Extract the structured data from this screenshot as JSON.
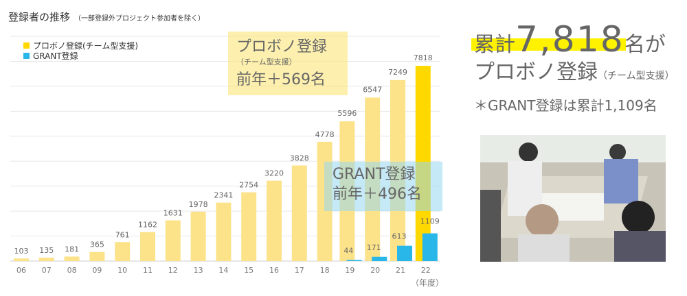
{
  "title": "登録者の推移",
  "subtitle": "（一部登録外プロジェクト参加者を除く）",
  "callout_probono": {
    "line1": "プロボノ登録",
    "line2": "（チーム型支援）",
    "line3": "前年＋569名"
  },
  "callout_grant": {
    "line1": "GRANT登録",
    "line2": "前年＋496名"
  },
  "summary": {
    "prefix": "累計",
    "total": "7,818",
    "suffix": "名が",
    "line2": "プロボノ登録",
    "line2_note": "（チーム型支援）",
    "line3": "＊GRANT登録は累計1,109名"
  },
  "colors": {
    "probono": "#FCE38A",
    "probono_latest": "#FFD800",
    "grant": "#29B6E8",
    "highlight": "#FFF200"
  },
  "chart_data": {
    "type": "bar",
    "categories": [
      "06",
      "07",
      "08",
      "09",
      "10",
      "11",
      "12",
      "13",
      "14",
      "15",
      "16",
      "17",
      "18",
      "19",
      "20",
      "21",
      "22"
    ],
    "series": [
      {
        "name": "プロボノ登録(チーム型支援)",
        "values": [
          103,
          135,
          181,
          365,
          761,
          1162,
          1631,
          1978,
          2341,
          2754,
          3220,
          3828,
          4778,
          5596,
          6547,
          7249,
          7818
        ]
      },
      {
        "name": "GRANT登録",
        "values": [
          null,
          null,
          null,
          null,
          null,
          null,
          null,
          null,
          null,
          null,
          null,
          null,
          null,
          44,
          171,
          613,
          1109
        ]
      }
    ],
    "x_unit": "（年度）",
    "ylim": [
      0,
      9000
    ],
    "grid": true,
    "legend": "top-left"
  },
  "photo": {
    "icon": "workshop-photo"
  }
}
